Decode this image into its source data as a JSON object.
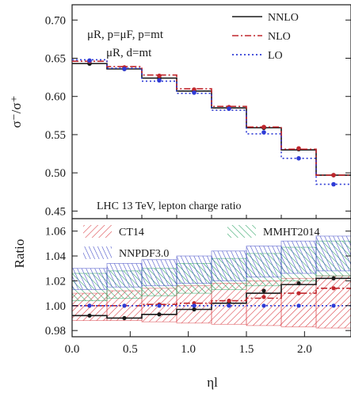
{
  "chart_data": [
    {
      "type": "line",
      "panel": "top",
      "step": true,
      "ylabel": "σ⁻/σ⁺",
      "ylim": [
        0.44,
        0.72
      ],
      "yticks": [
        "0.45",
        "0.50",
        "0.55",
        "0.60",
        "0.65",
        "0.70"
      ],
      "xlim": [
        0.0,
        2.4
      ],
      "bin_edges": [
        0.0,
        0.3,
        0.6,
        0.9,
        1.2,
        1.5,
        1.8,
        2.1,
        2.4
      ],
      "annotation_lines": [
        "μR, p=μF, p=mt",
        "μR, d=mt"
      ],
      "bottom_text": "LHC 13 TeV, lepton charge ratio",
      "legend_position": "top-right",
      "series": [
        {
          "name": "NNLO",
          "color": "#1a1a1a",
          "dash": "solid",
          "values": [
            0.643,
            0.636,
            0.624,
            0.607,
            0.585,
            0.559,
            0.53,
            0.497
          ]
        },
        {
          "name": "NLO",
          "color": "#c0272d",
          "dash": "dashdot",
          "values": [
            0.646,
            0.639,
            0.628,
            0.61,
            0.587,
            0.56,
            0.531,
            0.497
          ]
        },
        {
          "name": "LO",
          "color": "#2e3bd6",
          "dash": "dotted",
          "values": [
            0.648,
            0.637,
            0.62,
            0.604,
            0.582,
            0.551,
            0.519,
            0.485
          ]
        }
      ],
      "points": [
        {
          "series": "NNLO",
          "values": [
            0.643,
            0.636,
            0.624,
            0.607,
            0.585,
            0.559,
            0.531,
            0.497
          ]
        },
        {
          "series": "NLO",
          "values": [
            0.646,
            0.638,
            0.627,
            0.609,
            0.586,
            0.56,
            0.532,
            0.497
          ]
        },
        {
          "series": "LO",
          "values": [
            0.647,
            0.636,
            0.621,
            0.605,
            0.584,
            0.553,
            0.519,
            0.485
          ]
        }
      ]
    },
    {
      "type": "area",
      "panel": "bottom",
      "step": true,
      "xlabel": "ηl",
      "ylabel": "Ratio",
      "ylim": [
        0.975,
        1.07
      ],
      "yticks": [
        "0.98",
        "1.00",
        "1.02",
        "1.04",
        "1.06"
      ],
      "xticks": [
        "0.0",
        "0.5",
        "1.0",
        "1.5",
        "2.0"
      ],
      "xlim": [
        0.0,
        2.4
      ],
      "bin_edges": [
        0.0,
        0.3,
        0.6,
        0.9,
        1.2,
        1.5,
        1.8,
        2.1,
        2.4
      ],
      "legend_position": "top",
      "bands": [
        {
          "name": "CT14",
          "color": "#d9393f",
          "low": [
            0.988,
            0.988,
            0.987,
            0.986,
            0.985,
            0.984,
            0.983,
            0.982
          ],
          "high": [
            1.01,
            1.012,
            1.014,
            1.016,
            1.018,
            1.02,
            1.022,
            1.024
          ]
        },
        {
          "name": "MMHT2014",
          "color": "#1f9e5a",
          "low": [
            1.004,
            1.006,
            1.008,
            1.01,
            1.013,
            1.016,
            1.02,
            1.024
          ],
          "high": [
            1.026,
            1.028,
            1.03,
            1.034,
            1.038,
            1.042,
            1.047,
            1.052
          ]
        },
        {
          "name": "NNPDF3.0",
          "color": "#3b45c4",
          "low": [
            1.013,
            1.015,
            1.016,
            1.018,
            1.02,
            1.023,
            1.026,
            1.028
          ],
          "high": [
            1.03,
            1.034,
            1.037,
            1.04,
            1.044,
            1.048,
            1.052,
            1.056
          ]
        }
      ],
      "series": [
        {
          "name": "NNLO",
          "color": "#1a1a1a",
          "dash": "solid",
          "values": [
            0.992,
            0.99,
            0.993,
            0.997,
            1.002,
            1.01,
            1.017,
            1.022
          ]
        },
        {
          "name": "NLO",
          "color": "#c0272d",
          "dash": "dashdot",
          "values": [
            1.0,
            1.0,
            1.001,
            1.002,
            1.004,
            1.006,
            1.01,
            1.014
          ]
        },
        {
          "name": "LO",
          "color": "#2e3bd6",
          "dash": "dotted",
          "values": [
            1.0,
            1.0,
            1.0,
            1.0,
            1.0,
            1.0,
            1.0,
            1.0
          ]
        }
      ],
      "points": [
        {
          "series": "NNLO",
          "values": [
            0.992,
            0.99,
            0.993,
            0.997,
            1.003,
            1.012,
            1.018,
            1.022
          ]
        },
        {
          "series": "NLO",
          "values": [
            1.0,
            1.0,
            1.001,
            1.002,
            1.004,
            1.007,
            1.01,
            1.014
          ]
        },
        {
          "series": "LO",
          "values": [
            1.0,
            1.0,
            1.0,
            1.0,
            1.0,
            1.0,
            1.0,
            1.0
          ]
        }
      ]
    }
  ]
}
